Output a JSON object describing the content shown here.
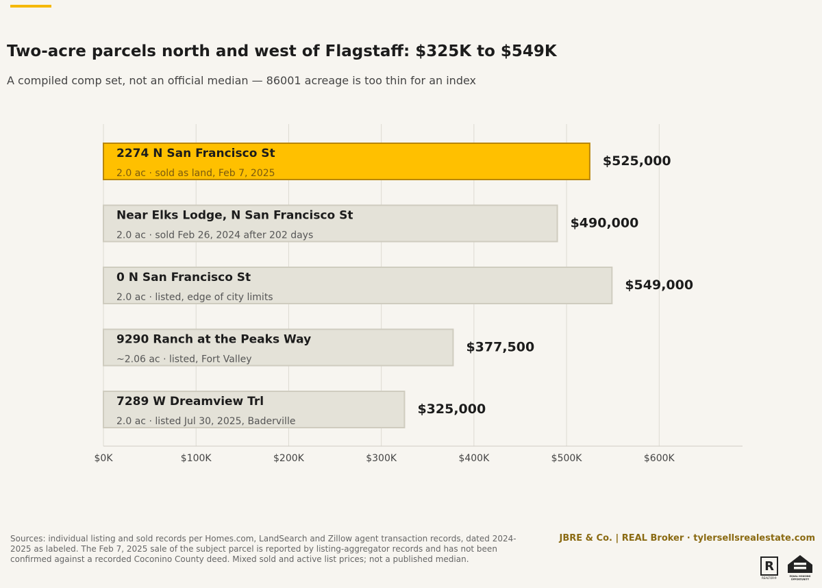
{
  "header": {
    "title": "Two-acre parcels north and west of Flagstaff: $325K to $549K",
    "subtitle": "A compiled comp set, not an official median — 86001 acreage is too thin for an index"
  },
  "colors": {
    "highlight_fill": "#ffc000",
    "highlight_stroke": "#b8860b",
    "bar_fill": "#e4e2d8",
    "bar_stroke": "#cfccbf",
    "grid": "#dddad2",
    "accent": "#f5b800"
  },
  "chart_data": {
    "type": "bar",
    "orientation": "horizontal",
    "categories": [
      "2274 N San Francisco St",
      "Near Elks Lodge, N San Francisco St",
      "0 N San Francisco St",
      "9290 Ranch at the Peaks Way",
      "7289 W Dreamview Trl"
    ],
    "details": [
      "2.0 ac · sold as land, Feb 7, 2025",
      "2.0 ac · sold Feb 26, 2024 after 202 days",
      "2.0 ac · listed, edge of city limits",
      "~2.06 ac · listed, Fort Valley",
      "2.0 ac · listed Jul 30, 2025, Baderville"
    ],
    "values": [
      525000,
      490000,
      549000,
      377500,
      325000
    ],
    "value_labels": [
      "$525,000",
      "$490,000",
      "$549,000",
      "$377,500",
      "$325,000"
    ],
    "highlighted_index": 0,
    "xlim": [
      0,
      690000
    ],
    "xticks": [
      0,
      100000,
      200000,
      300000,
      400000,
      500000,
      600000
    ],
    "xtick_labels": [
      "$0K",
      "$100K",
      "$200K",
      "$300K",
      "$400K",
      "$500K",
      "$600K"
    ],
    "grid": true
  },
  "footer": {
    "sources": "Sources: individual listing and sold records per Homes.com, LandSearch and Zillow agent transaction records, dated 2024-2025 as labeled. The Feb 7, 2025 sale of the subject parcel is reported by listing-aggregator records and has not been confirmed against a recorded Coconino County deed. Mixed sold and active list prices; not a published median.",
    "brand": "JBRE & Co.  |  REAL Broker   ·   tylersellsrealestate.com",
    "realtor_mark": "R",
    "realtor_caption": "REALTOR®",
    "eho_caption": "EQUAL HOUSING OPPORTUNITY"
  }
}
